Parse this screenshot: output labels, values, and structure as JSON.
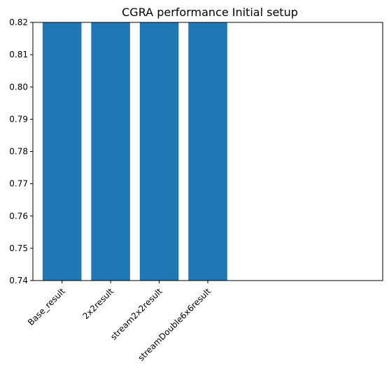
{
  "chart_data": {
    "type": "bar",
    "title": "CGRA performance Initial setup",
    "xlabel": "",
    "ylabel": "",
    "categories": [
      "Base_result",
      "2x2result",
      "stream2x2result",
      "streamDouble6x6result"
    ],
    "values": [
      0.82,
      0.82,
      0.82,
      0.82
    ],
    "ylim": [
      0.74,
      0.82
    ],
    "yticks": [
      "0.74",
      "0.75",
      "0.76",
      "0.77",
      "0.78",
      "0.79",
      "0.80",
      "0.81",
      "0.82"
    ],
    "xlim": [
      -0.6,
      6.6
    ],
    "bar_color": "#1f77b4",
    "grid": false,
    "legend": "none",
    "tick_label_rotation": 45
  }
}
